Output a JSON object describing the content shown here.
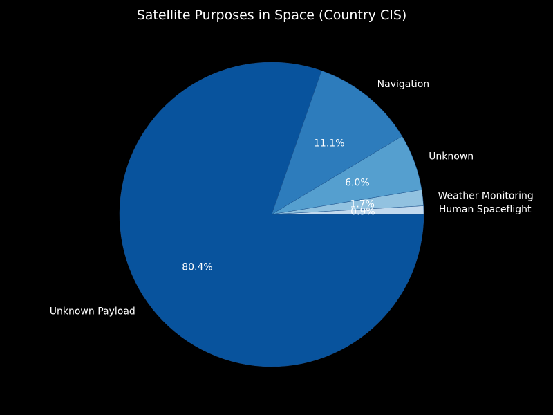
{
  "chart_data": {
    "type": "pie",
    "title": "Satellite Purposes in Space (Country CIS)",
    "slices": [
      {
        "label": "Unknown Payload",
        "value": 80.4,
        "pct_label": "80.4%",
        "color": "#08539d"
      },
      {
        "label": "Navigation",
        "value": 11.1,
        "pct_label": "11.1%",
        "color": "#2d7cbc"
      },
      {
        "label": "Unknown",
        "value": 6.0,
        "pct_label": "6.0%",
        "color": "#559fcf"
      },
      {
        "label": "Weather Monitoring",
        "value": 1.7,
        "pct_label": "1.7%",
        "color": "#92c2e0"
      },
      {
        "label": "Human Spaceflight",
        "value": 0.9,
        "pct_label": "0.9%",
        "color": "#c3daee"
      }
    ],
    "start_angle_deg": 0,
    "direction": "clockwise",
    "background": "#000000",
    "text_color": "#ffffff"
  }
}
